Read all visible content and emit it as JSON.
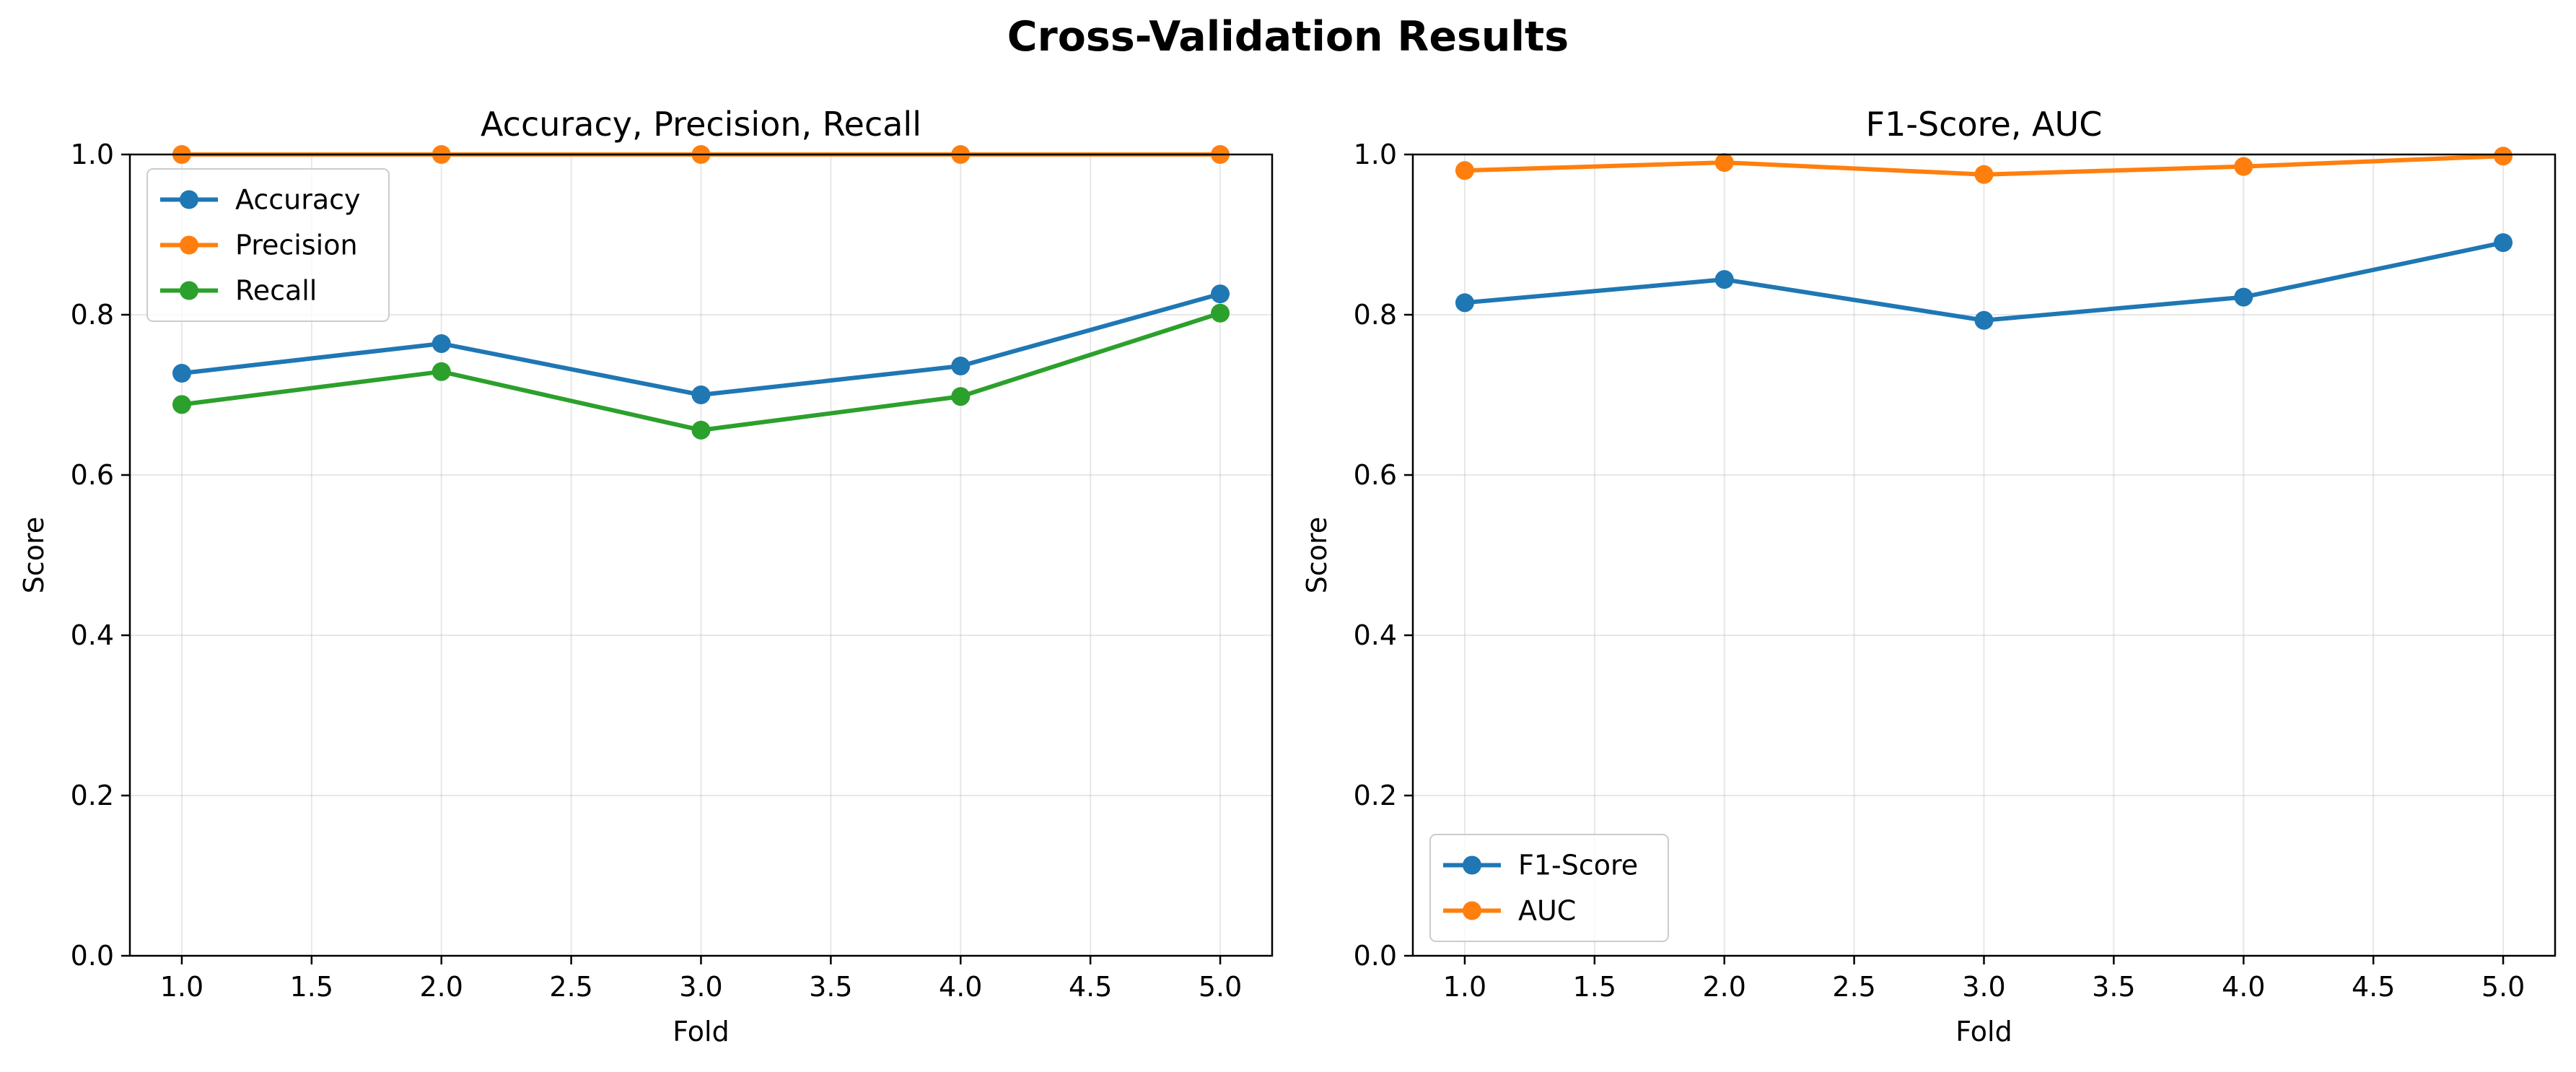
{
  "figure": {
    "title": "Cross-Validation Results"
  },
  "chart_data": [
    {
      "type": "line",
      "title": "Accuracy, Precision, Recall",
      "xlabel": "Fold",
      "ylabel": "Score",
      "x": [
        1,
        2,
        3,
        4,
        5
      ],
      "xlim": [
        0.8,
        5.2
      ],
      "ylim": [
        0,
        1
      ],
      "xticks": [
        1.0,
        1.5,
        2.0,
        2.5,
        3.0,
        3.5,
        4.0,
        4.5,
        5.0
      ],
      "xtick_labels": [
        "1.0",
        "1.5",
        "2.0",
        "2.5",
        "3.0",
        "3.5",
        "4.0",
        "4.5",
        "5.0"
      ],
      "yticks": [
        0.0,
        0.2,
        0.4,
        0.6,
        0.8,
        1.0
      ],
      "ytick_labels": [
        "0.0",
        "0.2",
        "0.4",
        "0.6",
        "0.8",
        "1.0"
      ],
      "grid": true,
      "legend": "upper-left",
      "series": [
        {
          "name": "Accuracy",
          "color": "#1f77b4",
          "values": [
            0.727,
            0.764,
            0.7,
            0.736,
            0.826
          ]
        },
        {
          "name": "Precision",
          "color": "#ff7f0e",
          "values": [
            1.0,
            1.0,
            1.0,
            1.0,
            1.0
          ]
        },
        {
          "name": "Recall",
          "color": "#2ca02c",
          "values": [
            0.688,
            0.729,
            0.656,
            0.698,
            0.802
          ]
        }
      ]
    },
    {
      "type": "line",
      "title": "F1-Score, AUC",
      "xlabel": "Fold",
      "ylabel": "Score",
      "x": [
        1,
        2,
        3,
        4,
        5
      ],
      "xlim": [
        0.8,
        5.2
      ],
      "ylim": [
        0,
        1
      ],
      "xticks": [
        1.0,
        1.5,
        2.0,
        2.5,
        3.0,
        3.5,
        4.0,
        4.5,
        5.0
      ],
      "xtick_labels": [
        "1.0",
        "1.5",
        "2.0",
        "2.5",
        "3.0",
        "3.5",
        "4.0",
        "4.5",
        "5.0"
      ],
      "yticks": [
        0.0,
        0.2,
        0.4,
        0.6,
        0.8,
        1.0
      ],
      "ytick_labels": [
        "0.0",
        "0.2",
        "0.4",
        "0.6",
        "0.8",
        "1.0"
      ],
      "grid": true,
      "legend": "lower-left",
      "series": [
        {
          "name": "F1-Score",
          "color": "#1f77b4",
          "values": [
            0.815,
            0.844,
            0.793,
            0.822,
            0.89
          ]
        },
        {
          "name": "AUC",
          "color": "#ff7f0e",
          "values": [
            0.98,
            0.99,
            0.975,
            0.985,
            0.998
          ]
        }
      ]
    }
  ]
}
